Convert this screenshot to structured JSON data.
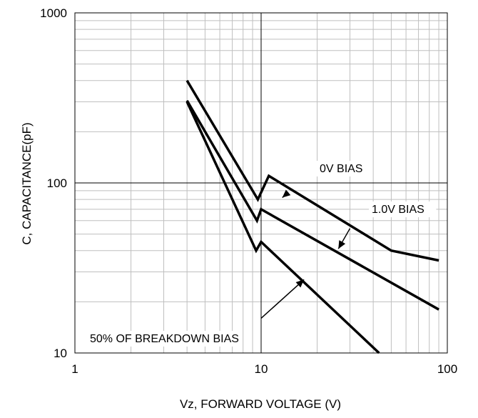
{
  "chart_data": {
    "type": "line",
    "title": "",
    "xlabel": "Vz, FORWARD VOLTAGE (V)",
    "ylabel": "C, CAPACITANCE(pF)",
    "x_scale": "log",
    "y_scale": "log",
    "xlim": [
      1,
      100
    ],
    "ylim": [
      10,
      1000
    ],
    "grid": true,
    "x_tick_labels": [
      "1",
      "10",
      "100"
    ],
    "y_tick_labels": [
      "10",
      "100",
      "1000"
    ],
    "series": [
      {
        "name": "0V BIAS",
        "points": [
          [
            4,
            400
          ],
          [
            9.6,
            80
          ],
          [
            11,
            110
          ],
          [
            50,
            40
          ],
          [
            90,
            35
          ]
        ]
      },
      {
        "name": "1.0V BIAS",
        "points": [
          [
            4,
            305
          ],
          [
            9.5,
            60
          ],
          [
            10,
            70
          ],
          [
            90,
            18
          ]
        ]
      },
      {
        "name": "50% OF BREAKDOWN BIAS",
        "points": [
          [
            4,
            300
          ],
          [
            9.4,
            40
          ],
          [
            10,
            45
          ],
          [
            43,
            10
          ]
        ]
      }
    ],
    "annotations": [
      {
        "text": "0V BIAS",
        "arrow_from": [
          14,
          88
        ],
        "arrow_to": [
          13,
          82
        ]
      },
      {
        "text": "1.0V BIAS",
        "arrow_from": [
          30,
          54
        ],
        "arrow_to": [
          26,
          41
        ]
      },
      {
        "text": "50% OF BREAKDOWN BIAS",
        "arrow_from": [
          10,
          16
        ],
        "arrow_to": [
          17,
          27
        ]
      }
    ],
    "colors": {
      "lines": "#000000",
      "grid": "#bfbfbf",
      "major_grid": "#000000"
    }
  }
}
